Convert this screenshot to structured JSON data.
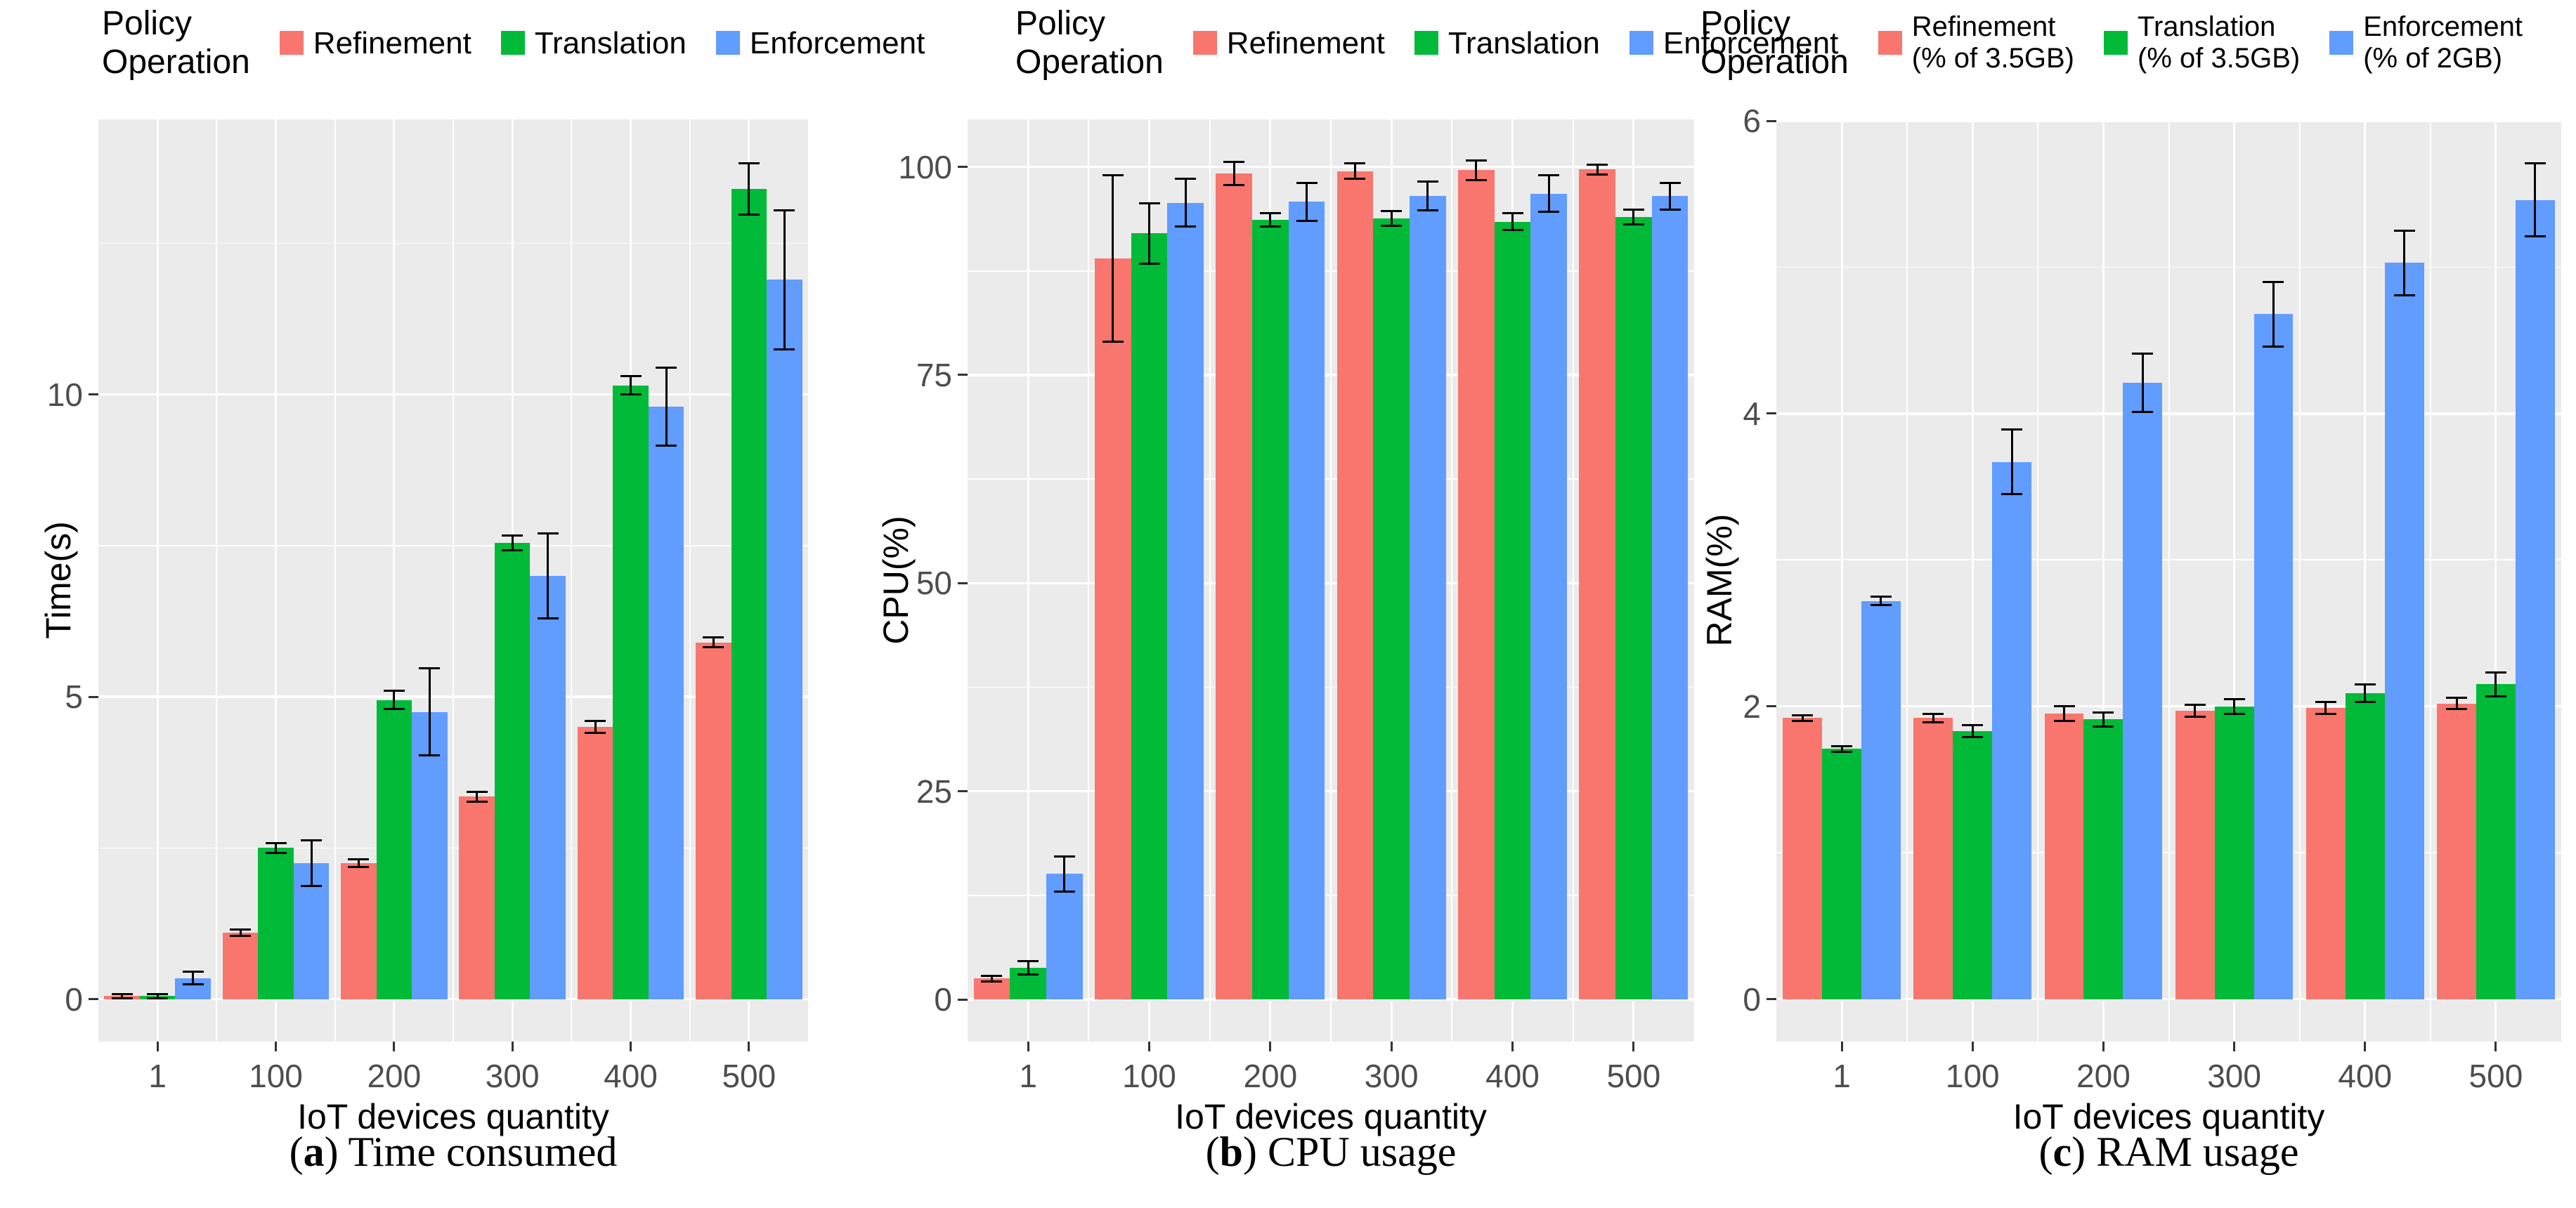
{
  "figure": {
    "legend_title_lines": [
      "Policy",
      "Operation"
    ],
    "captions": [
      {
        "letter": "a",
        "text": "Time consumed"
      },
      {
        "letter": "b",
        "text": "CPU usage"
      },
      {
        "letter": "c",
        "text": "RAM usage"
      }
    ]
  },
  "colors": {
    "refinement": "#F8766D",
    "translation": "#00BA38",
    "enforcement": "#619CFF",
    "panel_bg": "#EBEBEB",
    "grid": "#FFFFFF",
    "tick_text": "#4D4D4D",
    "error_bar": "#000000"
  },
  "chart_data": [
    {
      "type": "bar",
      "title": "(a) Time consumed",
      "xlabel": "IoT devices quantity",
      "ylabel": "Time(s)",
      "categories": [
        "1",
        "100",
        "200",
        "300",
        "400",
        "500"
      ],
      "yticks": [
        0,
        5,
        10
      ],
      "yminor": [
        2.5,
        7.5,
        12.5
      ],
      "ylim": [
        -0.7,
        14.55
      ],
      "grid": true,
      "legend_position": "top",
      "legend_items": [
        {
          "color_key": "refinement",
          "label_lines": [
            "Refinement"
          ]
        },
        {
          "color_key": "translation",
          "label_lines": [
            "Translation"
          ]
        },
        {
          "color_key": "enforcement",
          "label_lines": [
            "Enforcement"
          ]
        }
      ],
      "series": [
        {
          "name": "Refinement",
          "color_key": "refinement",
          "values": [
            0.05,
            1.1,
            2.25,
            3.35,
            4.5,
            5.9
          ],
          "errors": [
            0.03,
            0.05,
            0.06,
            0.08,
            0.1,
            0.08
          ]
        },
        {
          "name": "Translation",
          "color_key": "translation",
          "values": [
            0.05,
            2.5,
            4.95,
            7.55,
            10.15,
            13.4
          ],
          "errors": [
            0.03,
            0.08,
            0.15,
            0.12,
            0.15,
            0.42
          ]
        },
        {
          "name": "Enforcement",
          "color_key": "enforcement",
          "values": [
            0.35,
            2.25,
            4.75,
            7.0,
            9.8,
            11.9
          ],
          "errors": [
            0.1,
            0.38,
            0.72,
            0.7,
            0.65,
            1.15
          ]
        }
      ]
    },
    {
      "type": "bar",
      "title": "(b) CPU usage",
      "xlabel": "IoT devices quantity",
      "ylabel": "CPU(%)",
      "categories": [
        "1",
        "100",
        "200",
        "300",
        "400",
        "500"
      ],
      "yticks": [
        0,
        25,
        50,
        75,
        100
      ],
      "yminor": [
        12.5,
        37.5,
        62.5,
        87.5
      ],
      "ylim": [
        -5.05,
        105.7
      ],
      "grid": true,
      "legend_position": "top",
      "legend_items": [
        {
          "color_key": "refinement",
          "label_lines": [
            "Refinement"
          ]
        },
        {
          "color_key": "translation",
          "label_lines": [
            "Translation"
          ]
        },
        {
          "color_key": "enforcement",
          "label_lines": [
            "Enforcement"
          ]
        }
      ],
      "series": [
        {
          "name": "Refinement",
          "color_key": "refinement",
          "values": [
            2.5,
            89.0,
            99.2,
            99.5,
            99.6,
            99.7
          ],
          "errors": [
            0.3,
            10.0,
            1.4,
            0.9,
            1.2,
            0.6
          ]
        },
        {
          "name": "Translation",
          "color_key": "translation",
          "values": [
            3.8,
            92.0,
            93.6,
            93.8,
            93.4,
            94.0
          ],
          "errors": [
            0.8,
            3.6,
            0.8,
            0.9,
            1.0,
            0.9
          ]
        },
        {
          "name": "Enforcement",
          "color_key": "enforcement",
          "values": [
            15.1,
            95.7,
            95.8,
            96.5,
            96.8,
            96.5
          ],
          "errors": [
            2.1,
            2.9,
            2.3,
            1.7,
            2.2,
            1.6
          ]
        }
      ]
    },
    {
      "type": "bar",
      "title": "(c) RAM usage",
      "xlabel": "IoT devices quantity",
      "ylabel": "RAM(%)",
      "categories": [
        "1",
        "100",
        "200",
        "300",
        "400",
        "500"
      ],
      "yticks": [
        0,
        2,
        4,
        6
      ],
      "yminor": [
        1,
        3,
        5
      ],
      "ylim": [
        -0.29,
        6.01
      ],
      "grid": true,
      "legend_position": "top",
      "legend_items": [
        {
          "color_key": "refinement",
          "label_lines": [
            "Refinement",
            "(% of 3.5GB)"
          ]
        },
        {
          "color_key": "translation",
          "label_lines": [
            "Translation",
            "(% of 3.5GB)"
          ]
        },
        {
          "color_key": "enforcement",
          "label_lines": [
            "Enforcement",
            "(% of 2GB)"
          ]
        }
      ],
      "series": [
        {
          "name": "Refinement (% of 3.5GB)",
          "color_key": "refinement",
          "values": [
            1.92,
            1.92,
            1.95,
            1.97,
            1.99,
            2.02
          ],
          "errors": [
            0.02,
            0.03,
            0.05,
            0.04,
            0.04,
            0.04
          ]
        },
        {
          "name": "Translation (% of 3.5GB)",
          "color_key": "translation",
          "values": [
            1.71,
            1.83,
            1.91,
            2.0,
            2.09,
            2.15
          ],
          "errors": [
            0.02,
            0.04,
            0.05,
            0.05,
            0.06,
            0.08
          ]
        },
        {
          "name": "Enforcement (% of 2GB)",
          "color_key": "enforcement",
          "values": [
            2.72,
            3.67,
            4.21,
            4.68,
            5.03,
            5.46
          ],
          "errors": [
            0.03,
            0.22,
            0.2,
            0.22,
            0.22,
            0.25
          ]
        }
      ]
    }
  ]
}
